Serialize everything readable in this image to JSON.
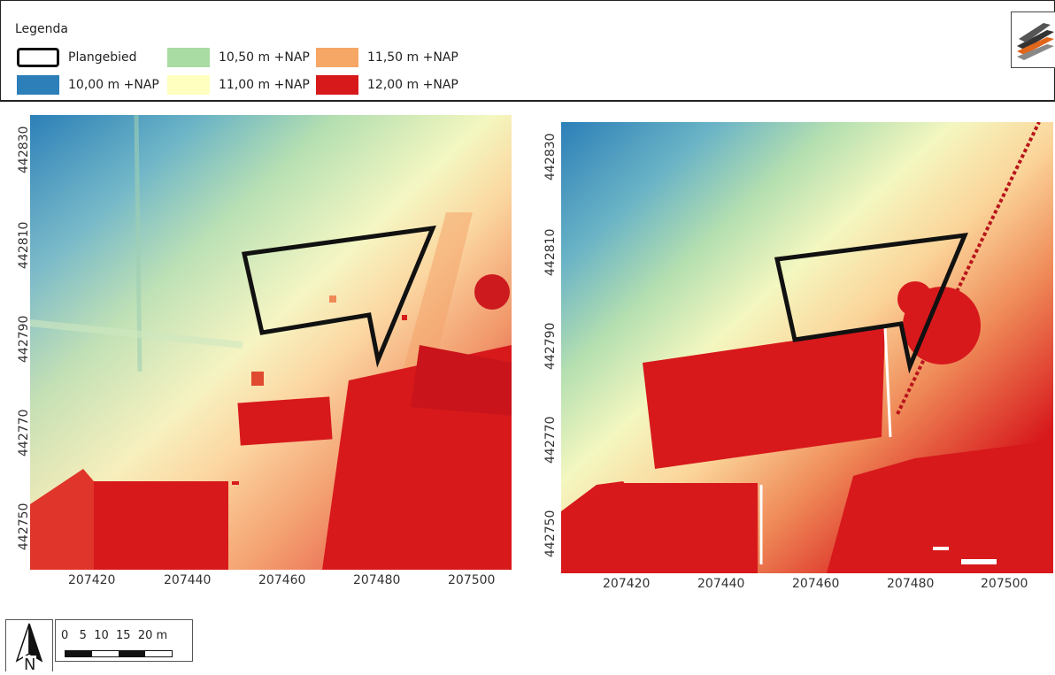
{
  "legend": {
    "title": "Legenda",
    "items": [
      {
        "label": "Plangebied",
        "color": "#ffffff",
        "style": "outline"
      },
      {
        "label": "10,50 m +NAP",
        "color": "#a8dca2"
      },
      {
        "label": "11,50 m +NAP",
        "color": "#f6a765"
      },
      {
        "label": "10,00 m +NAP",
        "color": "#2c7fb8"
      },
      {
        "label": "11,00 m +NAP",
        "color": "#ffffbf"
      },
      {
        "label": "12,00 m +NAP",
        "color": "#d7191c"
      }
    ]
  },
  "maps": [
    {
      "name": "left-map",
      "x_ticks": [
        "207420",
        "207440",
        "207460",
        "207480",
        "207500"
      ],
      "y_ticks": [
        "442830",
        "442810",
        "442790",
        "442770",
        "442750"
      ]
    },
    {
      "name": "right-map",
      "x_ticks": [
        "207420",
        "207440",
        "207460",
        "207480",
        "207500"
      ],
      "y_ticks": [
        "442830",
        "442810",
        "442790",
        "442770",
        "442750"
      ]
    }
  ],
  "scale_bar": {
    "labels": "0   5  10  15  20 m"
  },
  "north_arrow": {
    "label": "N"
  }
}
